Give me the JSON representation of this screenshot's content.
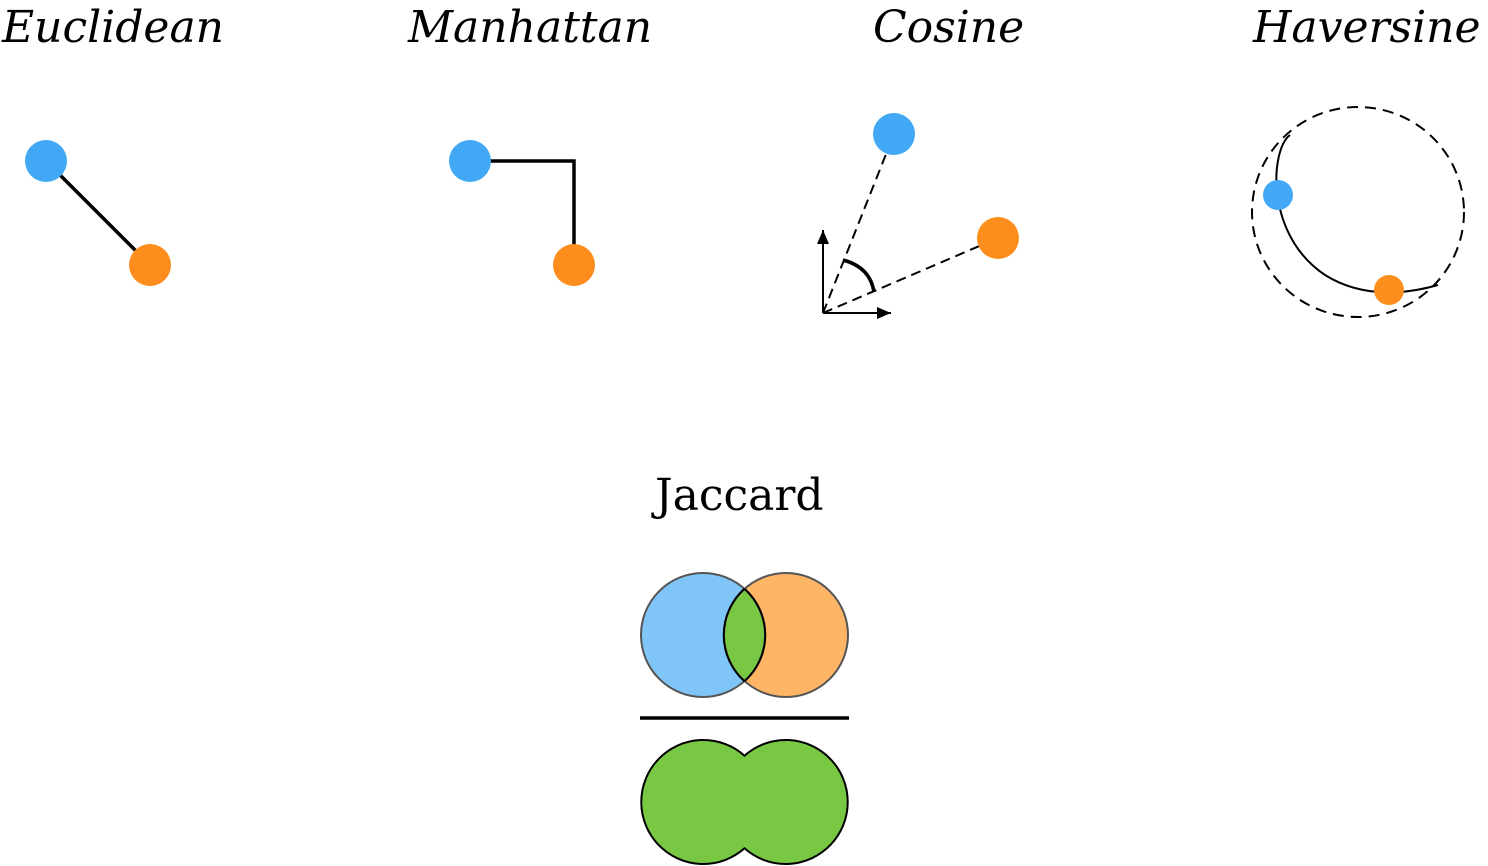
{
  "titles": {
    "euclidean": "Euclidean",
    "manhattan": "Manhattan",
    "cosine": "Cosine",
    "haversine": "Haversine",
    "jaccard": "Jaccard"
  },
  "colors": {
    "point_a": "#42a8f5",
    "point_b": "#fd8e1e",
    "set_a": "#7fc5f7",
    "set_b": "#ffb566",
    "intersection_union": "#79c843",
    "stroke": "#000000",
    "set_stroke": "#555555"
  },
  "icons": {
    "cosine_angle": "angle-arc-icon",
    "cosine_axes": "axes-icon",
    "haversine_sphere": "dashed-circle-icon",
    "jaccard_fraction": "venn-fraction-icon"
  }
}
